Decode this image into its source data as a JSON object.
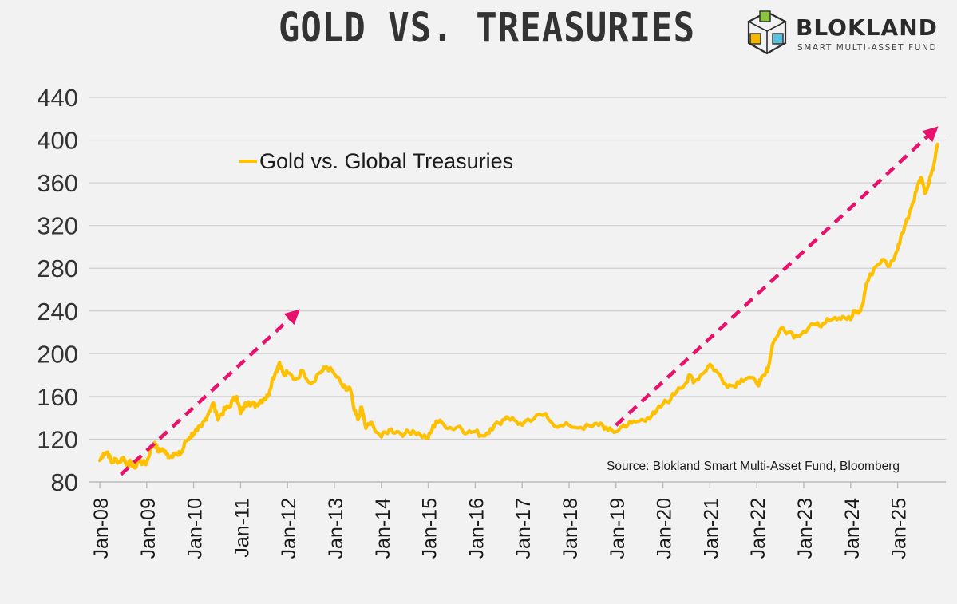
{
  "header": {
    "title": "GOLD VS. TREASURIES"
  },
  "logo": {
    "name": "BLOKLAND",
    "tagline": "SMART MULTI-ASSET FUND"
  },
  "colors": {
    "background": "#f2f2f2",
    "series": "#ffc000",
    "arrow": "#e8116b",
    "grid": "#cfcfcf",
    "text": "#333333"
  },
  "chart_data": {
    "type": "line",
    "title": "GOLD VS. TREASURIES",
    "xlabel": "",
    "ylabel": "",
    "ylim": [
      80,
      440
    ],
    "yticks": [
      80,
      120,
      160,
      200,
      240,
      280,
      320,
      360,
      400,
      440
    ],
    "ytick_labels": [
      "80",
      "120",
      "160",
      "200",
      "240",
      "280",
      "320",
      "360",
      "400",
      "440"
    ],
    "xlim": [
      2008.0,
      2025.85
    ],
    "xticks": [
      2008,
      2009,
      2010,
      2011,
      2012,
      2013,
      2014,
      2015,
      2016,
      2017,
      2018,
      2019,
      2020,
      2021,
      2022,
      2023,
      2024,
      2025
    ],
    "xtick_labels": [
      "Jan-08",
      "Jan-09",
      "Jan-10",
      "Jan-11",
      "Jan-12",
      "Jan-13",
      "Jan-14",
      "Jan-15",
      "Jan-16",
      "Jan-17",
      "Jan-18",
      "Jan-19",
      "Jan-20",
      "Jan-21",
      "Jan-22",
      "Jan-23",
      "Jan-24",
      "Jan-25"
    ],
    "grid": true,
    "legend": "upper-left",
    "series": [
      {
        "name": "Gold vs. Global Treasuries",
        "x": [
          2008.0,
          2008.08,
          2008.17,
          2008.25,
          2008.33,
          2008.42,
          2008.5,
          2008.58,
          2008.67,
          2008.75,
          2008.83,
          2008.92,
          2009.0,
          2009.08,
          2009.17,
          2009.25,
          2009.33,
          2009.42,
          2009.5,
          2009.58,
          2009.67,
          2009.75,
          2009.83,
          2009.92,
          2010.0,
          2010.08,
          2010.17,
          2010.25,
          2010.33,
          2010.42,
          2010.5,
          2010.58,
          2010.67,
          2010.75,
          2010.83,
          2010.92,
          2011.0,
          2011.08,
          2011.17,
          2011.25,
          2011.33,
          2011.42,
          2011.5,
          2011.58,
          2011.67,
          2011.75,
          2011.83,
          2011.92,
          2012.0,
          2012.17,
          2012.33,
          2012.5,
          2012.67,
          2012.75,
          2012.83,
          2013.0,
          2013.17,
          2013.25,
          2013.33,
          2013.42,
          2013.5,
          2013.58,
          2013.67,
          2013.75,
          2013.83,
          2014.0,
          2014.17,
          2014.33,
          2014.5,
          2014.67,
          2014.83,
          2015.0,
          2015.08,
          2015.17,
          2015.33,
          2015.5,
          2015.67,
          2015.83,
          2016.0,
          2016.17,
          2016.33,
          2016.5,
          2016.67,
          2016.83,
          2017.0,
          2017.25,
          2017.5,
          2017.75,
          2018.0,
          2018.25,
          2018.5,
          2018.67,
          2018.83,
          2019.0,
          2019.17,
          2019.33,
          2019.5,
          2019.67,
          2019.83,
          2020.0,
          2020.17,
          2020.33,
          2020.5,
          2020.58,
          2020.67,
          2020.83,
          2021.0,
          2021.17,
          2021.33,
          2021.5,
          2021.67,
          2021.83,
          2022.0,
          2022.08,
          2022.17,
          2022.25,
          2022.33,
          2022.5,
          2022.67,
          2022.83,
          2023.0,
          2023.17,
          2023.33,
          2023.5,
          2023.67,
          2023.83,
          2024.0,
          2024.08,
          2024.17,
          2024.25,
          2024.33,
          2024.5,
          2024.67,
          2024.83,
          2025.0,
          2025.08,
          2025.17,
          2025.25,
          2025.33,
          2025.42,
          2025.5,
          2025.58,
          2025.67,
          2025.75,
          2025.85
        ],
        "values": [
          100,
          107,
          108,
          98,
          101,
          99,
          103,
          96,
          98,
          93,
          102,
          97,
          98,
          110,
          117,
          108,
          111,
          106,
          104,
          107,
          105,
          108,
          118,
          122,
          126,
          128,
          132,
          139,
          146,
          154,
          140,
          143,
          148,
          150,
          156,
          160,
          144,
          151,
          155,
          153,
          152,
          156,
          158,
          160,
          175,
          183,
          192,
          180,
          182,
          176,
          184,
          172,
          182,
          184,
          188,
          181,
          170,
          166,
          168,
          147,
          138,
          150,
          130,
          135,
          132,
          122,
          129,
          127,
          125,
          128,
          124,
          121,
          129,
          137,
          134,
          130,
          132,
          126,
          127,
          123,
          130,
          135,
          141,
          138,
          133,
          139,
          144,
          131,
          133,
          131,
          132,
          135,
          128,
          127,
          133,
          135,
          137,
          140,
          144,
          153,
          158,
          168,
          173,
          180,
          174,
          181,
          190,
          182,
          172,
          170,
          176,
          178,
          172,
          174,
          180,
          188,
          208,
          223,
          220,
          217,
          221,
          228,
          226,
          233,
          234,
          235,
          232,
          240,
          238,
          245,
          265,
          280,
          288,
          282,
          298,
          312,
          322,
          332,
          342,
          356,
          365,
          350,
          360,
          372,
          396
        ]
      }
    ],
    "arrows": [
      {
        "from": [
          2008.45,
          87
        ],
        "to": [
          2012.15,
          237
        ]
      },
      {
        "from": [
          2019.0,
          133
        ],
        "to": [
          2025.75,
          408
        ]
      }
    ],
    "legend_label": "Gold vs. Global Treasuries",
    "annotation": "Source: Blokland Smart Multi-Asset Fund, Bloomberg"
  }
}
